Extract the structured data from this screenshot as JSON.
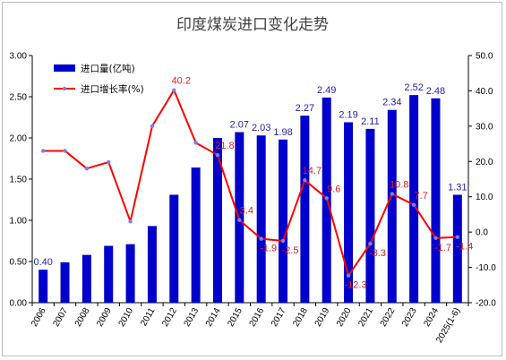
{
  "chart_data": {
    "type": "bar+line",
    "title": "印度煤炭进口变化走势",
    "categories": [
      "2006",
      "2007",
      "2008",
      "2009",
      "2010",
      "2011",
      "2012",
      "2013",
      "2014",
      "2015",
      "2016",
      "2017",
      "2018",
      "2019",
      "2020",
      "2021",
      "2022",
      "2023",
      "2024",
      "2025(1-6)"
    ],
    "series": [
      {
        "name": "进口量(亿吨)",
        "kind": "bar",
        "axis": "left",
        "color": "#0000CC",
        "values": [
          0.4,
          0.49,
          0.58,
          0.69,
          0.71,
          0.93,
          1.31,
          1.64,
          2.0,
          2.07,
          2.03,
          1.98,
          2.27,
          2.49,
          2.19,
          2.11,
          2.34,
          2.52,
          2.48,
          1.31
        ],
        "labels": [
          "0.40",
          null,
          null,
          null,
          null,
          null,
          null,
          null,
          null,
          "2.07",
          "2.03",
          "1.98",
          "2.27",
          "2.49",
          "2.19",
          "2.11",
          "2.34",
          "2.52",
          "2.48",
          "1.31"
        ]
      },
      {
        "name": "进口增长率(%)",
        "kind": "line",
        "axis": "right",
        "color": "#FF0000",
        "marker_color": "#7F7FE0",
        "values": [
          23.0,
          23.0,
          18.0,
          19.8,
          3.0,
          30.0,
          40.2,
          25.3,
          21.8,
          3.4,
          -1.9,
          -2.5,
          14.7,
          9.6,
          -12.3,
          -3.3,
          10.8,
          7.7,
          -1.7,
          -1.4
        ],
        "labels": [
          null,
          null,
          null,
          null,
          null,
          null,
          "40.2",
          null,
          "21.8",
          "3.4",
          "-1.9",
          "-2.5",
          "14.7",
          "9.6",
          "-12.3",
          "-3.3",
          "10.8",
          "7.7",
          "-1.7",
          "-1.4"
        ]
      }
    ],
    "y_left": {
      "min": 0,
      "max": 3,
      "ticks": [
        "0.00",
        "0.50",
        "1.00",
        "1.50",
        "2.00",
        "2.50",
        "3.00"
      ]
    },
    "y_right": {
      "min": -20,
      "max": 50,
      "ticks": [
        "-20.0",
        "-10.0",
        "0.0",
        "10.0",
        "20.0",
        "30.0",
        "40.0",
        "50.0"
      ]
    },
    "grid": false,
    "legend": "top-left"
  }
}
